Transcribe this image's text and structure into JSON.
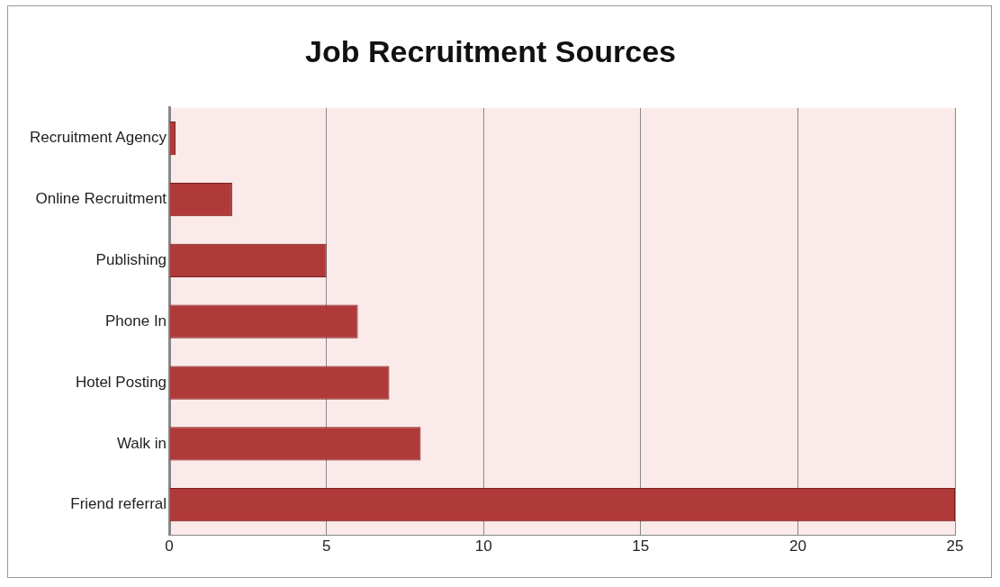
{
  "chart_data": {
    "type": "bar",
    "orientation": "horizontal",
    "title": "Job Recruitment Sources",
    "categories": [
      "Recruitment Agency",
      "Online Recruitment",
      "Publishing",
      "Phone In",
      "Hotel Posting",
      "Walk in",
      "Friend referral"
    ],
    "values": [
      0.2,
      2,
      5,
      6,
      7,
      8,
      25
    ],
    "color": "#b03a3a",
    "xlim": [
      0,
      25
    ],
    "xticks": [
      0,
      5,
      10,
      15,
      20,
      25
    ],
    "grid": "x",
    "legend": false
  }
}
